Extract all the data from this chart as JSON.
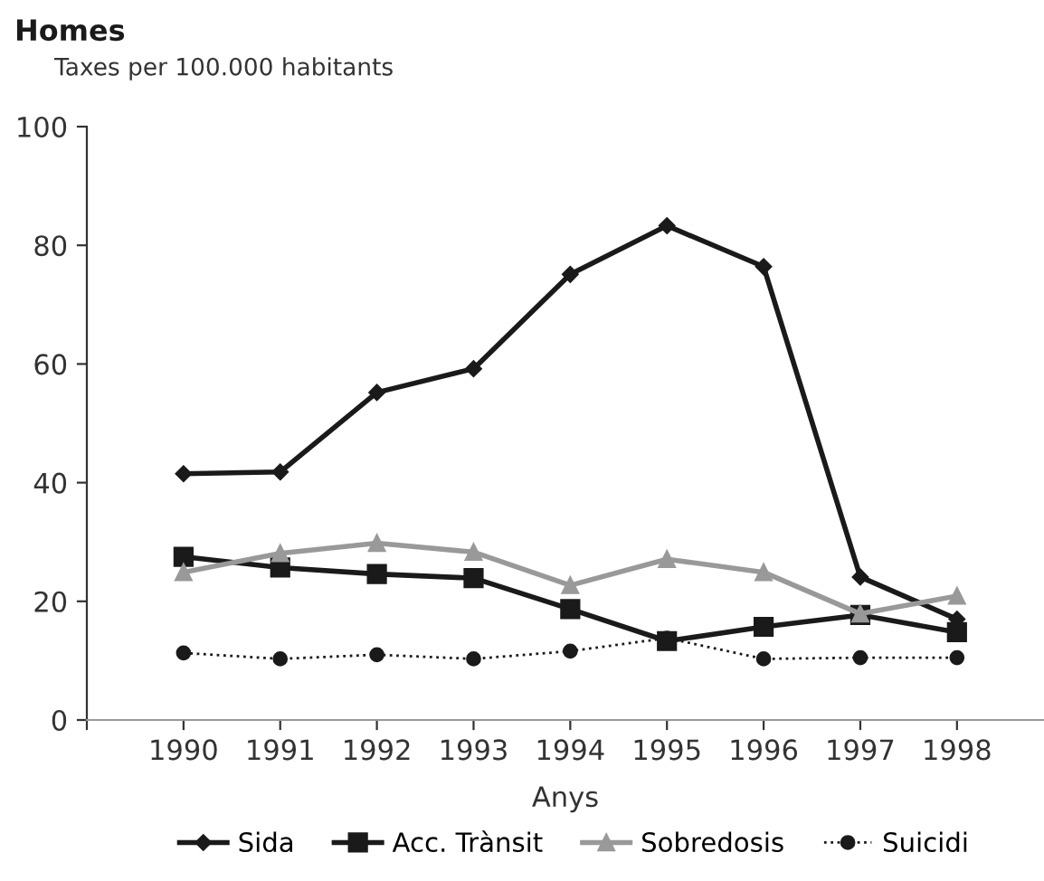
{
  "chart_data": {
    "type": "line",
    "title": "Homes",
    "subtitle": "Taxes per 100.000 habitants",
    "xlabel": "Anys",
    "categories": [
      "1990",
      "1991",
      "1992",
      "1993",
      "1994",
      "1995",
      "1996",
      "1997",
      "1998"
    ],
    "ylim": [
      0,
      100
    ],
    "yticks": [
      0,
      20,
      40,
      60,
      80,
      100
    ],
    "grid": false,
    "legend": "bottom",
    "series": [
      {
        "name": "Sida",
        "color": "#1a1a1a",
        "marker": "diamond",
        "line_style": "solid",
        "values": [
          41.5,
          41.8,
          55.2,
          59.2,
          75.1,
          83.3,
          76.4,
          24.1,
          17.0
        ]
      },
      {
        "name": "Acc. Trànsit",
        "color": "#1a1a1a",
        "marker": "square",
        "line_style": "solid",
        "values": [
          27.5,
          25.7,
          24.6,
          23.9,
          18.7,
          13.3,
          15.7,
          17.7,
          14.8
        ]
      },
      {
        "name": "Sobredosis",
        "color": "#999999",
        "marker": "triangle",
        "line_style": "solid",
        "values": [
          24.9,
          28.1,
          29.8,
          28.3,
          22.7,
          27.1,
          24.9,
          17.9,
          20.9
        ]
      },
      {
        "name": "Suicidi",
        "color": "#1a1a1a",
        "marker": "circle",
        "line_style": "dotted",
        "values": [
          11.3,
          10.3,
          11.0,
          10.3,
          11.6,
          13.8,
          10.3,
          10.5,
          10.5
        ]
      }
    ]
  }
}
